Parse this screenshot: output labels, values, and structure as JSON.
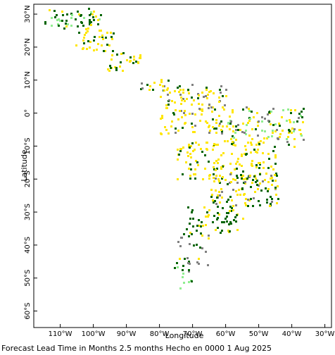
{
  "map": {
    "xlabel": "Longitude",
    "ylabel": "Latitude",
    "x_ticks": [
      {
        "value": -110,
        "label": "110°W"
      },
      {
        "value": -100,
        "label": "100°W"
      },
      {
        "value": -90,
        "label": "90°W"
      },
      {
        "value": -80,
        "label": "80°W"
      },
      {
        "value": -70,
        "label": "70°W"
      },
      {
        "value": -60,
        "label": "60°W"
      },
      {
        "value": -50,
        "label": "50°W"
      },
      {
        "value": -40,
        "label": "40°W"
      },
      {
        "value": -30,
        "label": "30°W"
      }
    ],
    "y_ticks": [
      {
        "value": 30,
        "label": "30°N"
      },
      {
        "value": 20,
        "label": "20°N"
      },
      {
        "value": 10,
        "label": "10°N"
      },
      {
        "value": 0,
        "label": "0°"
      },
      {
        "value": -10,
        "label": "10°S"
      },
      {
        "value": -20,
        "label": "20°S"
      },
      {
        "value": -30,
        "label": "30°S"
      },
      {
        "value": -40,
        "label": "40°S"
      },
      {
        "value": -50,
        "label": "50°S"
      },
      {
        "value": -60,
        "label": "60°S"
      }
    ],
    "lon_range": [
      -118,
      -28
    ],
    "lat_range": [
      -65,
      33
    ],
    "colors": {
      "yellow": "#ffe600",
      "dark_green": "#006400",
      "light_green": "#90ee90",
      "gray": "#808080"
    }
  },
  "caption": "Forecast Lead Time in Months 2.5 months Hecho en 0000 1 Aug 2025"
}
